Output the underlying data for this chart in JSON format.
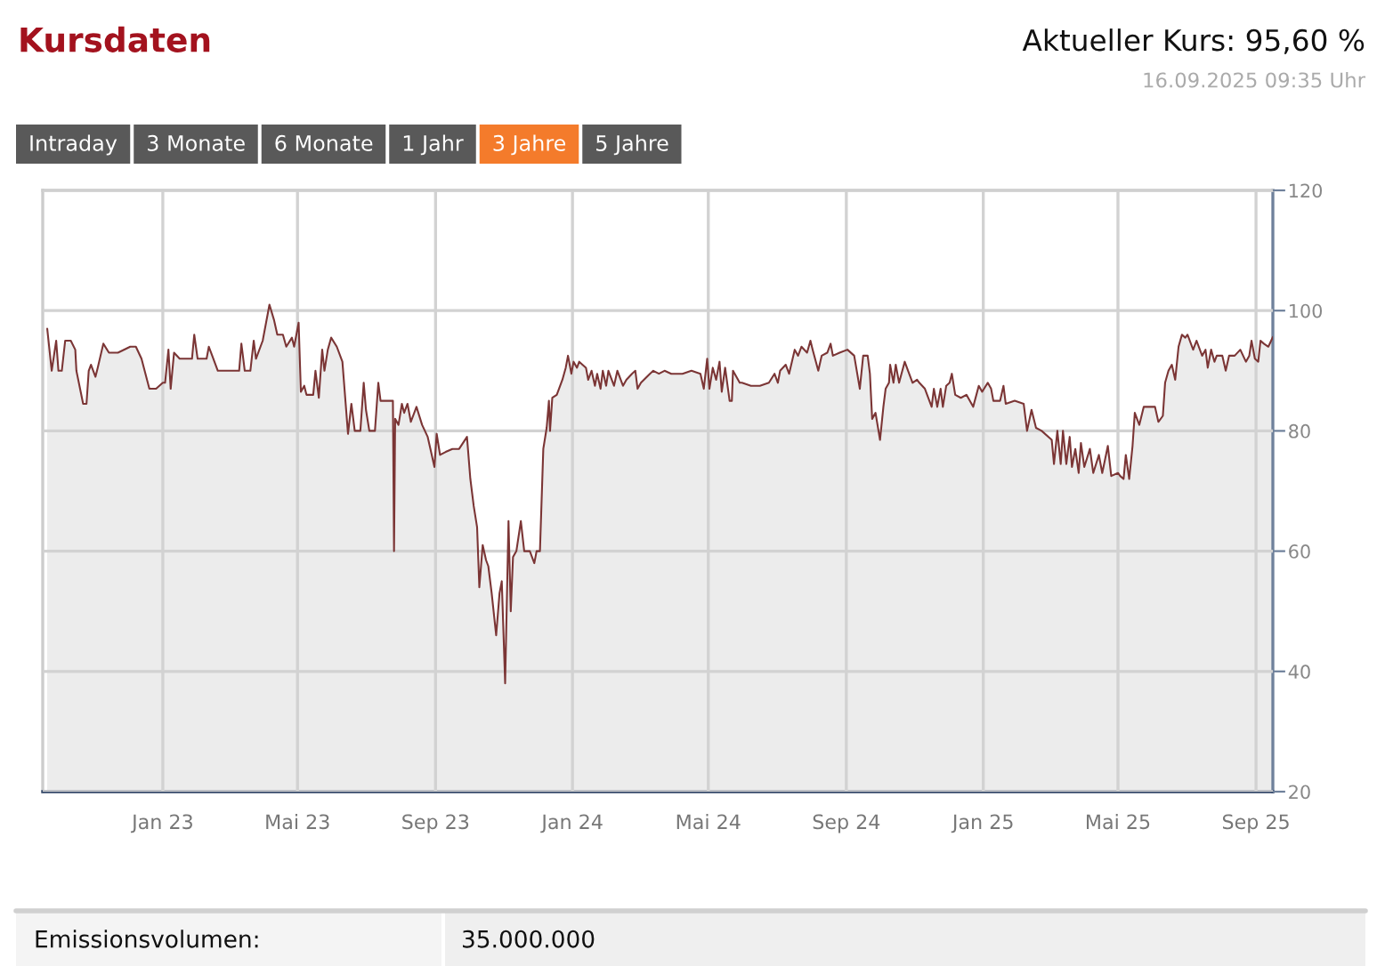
{
  "chart_data": {
    "type": "area",
    "title": "Kursdaten",
    "annotations": [
      "Aktueller Kurs: 95,60 %",
      "16.09.2025 09:35 Uhr",
      "Intraday",
      "3 Monate",
      "6 Monate",
      "1 Jahr",
      "3 Jahre",
      "5 Jahre",
      "Emissionsvolumen:",
      "35.000.000"
    ],
    "x": [
      "2022-09-20",
      "2022-09-24",
      "2022-09-28",
      "2022-09-30",
      "2022-10-03",
      "2022-10-06",
      "2022-10-11",
      "2022-10-15",
      "2022-10-16",
      "2022-10-22",
      "2022-10-25",
      "2022-10-27",
      "2022-10-29",
      "2022-11-02",
      "2022-11-04",
      "2022-11-09",
      "2022-11-14",
      "2022-11-22",
      "2022-12-03",
      "2022-12-08",
      "2022-12-13",
      "2022-12-20",
      "2022-12-26",
      "2023-01-01",
      "2023-01-03",
      "2023-01-06",
      "2023-01-08",
      "2023-01-11",
      "2023-01-16",
      "2023-01-27",
      "2023-01-29",
      "2023-02-01",
      "2023-02-09",
      "2023-02-11",
      "2023-02-14",
      "2023-02-19",
      "2023-03-10",
      "2023-03-12",
      "2023-03-15",
      "2023-03-20",
      "2023-03-23",
      "2023-03-25",
      "2023-03-31",
      "2023-04-06",
      "2023-04-10",
      "2023-04-13",
      "2023-04-18",
      "2023-04-21",
      "2023-04-26",
      "2023-04-28",
      "2023-05-02",
      "2023-05-04",
      "2023-05-07",
      "2023-05-09",
      "2023-05-15",
      "2023-05-17",
      "2023-05-20",
      "2023-05-23",
      "2023-05-25",
      "2023-05-28",
      "2023-05-31",
      "2023-06-05",
      "2023-06-10",
      "2023-06-15",
      "2023-06-18",
      "2023-06-21",
      "2023-06-26",
      "2023-06-29",
      "2023-07-01",
      "2023-07-04",
      "2023-07-09",
      "2023-07-12",
      "2023-07-14",
      "2023-07-22",
      "2023-07-25",
      "2023-07-26",
      "2023-07-27",
      "2023-07-30",
      "2023-08-02",
      "2023-08-04",
      "2023-08-07",
      "2023-08-10",
      "2023-08-15",
      "2023-08-20",
      "2023-08-25",
      "2023-08-28",
      "2023-08-31",
      "2023-09-02",
      "2023-09-05",
      "2023-09-10",
      "2023-09-16",
      "2023-09-22",
      "2023-09-29",
      "2023-10-02",
      "2023-10-05",
      "2023-10-08",
      "2023-10-10",
      "2023-10-13",
      "2023-10-16",
      "2023-10-18",
      "2023-10-21",
      "2023-10-25",
      "2023-10-28",
      "2023-10-30",
      "2023-11-02",
      "2023-11-05",
      "2023-11-07",
      "2023-11-09",
      "2023-11-12",
      "2023-11-16",
      "2023-11-19",
      "2023-11-24",
      "2023-11-28",
      "2023-11-30",
      "2023-12-03",
      "2023-12-06",
      "2023-12-09",
      "2023-12-11",
      "2023-12-12",
      "2023-12-14",
      "2023-12-18",
      "2023-12-23",
      "2023-12-26",
      "2023-12-28",
      "2023-12-31",
      "2024-01-02",
      "2024-01-05",
      "2024-01-07",
      "2024-01-13",
      "2024-01-15",
      "2024-01-18",
      "2024-01-21",
      "2024-01-23",
      "2024-01-26",
      "2024-01-28",
      "2024-01-31",
      "2024-02-02",
      "2024-02-07",
      "2024-02-10",
      "2024-02-15",
      "2024-02-18",
      "2024-02-23",
      "2024-02-26",
      "2024-02-28",
      "2024-03-02",
      "2024-03-10",
      "2024-03-13",
      "2024-03-18",
      "2024-03-23",
      "2024-03-29",
      "2024-04-08",
      "2024-04-16",
      "2024-04-24",
      "2024-04-27",
      "2024-04-30",
      "2024-05-02",
      "2024-05-05",
      "2024-05-08",
      "2024-05-11",
      "2024-05-13",
      "2024-05-16",
      "2024-05-20",
      "2024-05-22",
      "2024-05-23",
      "2024-05-29",
      "2024-05-31",
      "2024-06-08",
      "2024-06-16",
      "2024-06-24",
      "2024-06-29",
      "2024-07-02",
      "2024-07-04",
      "2024-07-09",
      "2024-07-12",
      "2024-07-17",
      "2024-07-20",
      "2024-07-23",
      "2024-07-28",
      "2024-07-31",
      "2024-08-02",
      "2024-08-07",
      "2024-08-10",
      "2024-08-15",
      "2024-08-18",
      "2024-08-20",
      "2024-08-26",
      "2024-09-02",
      "2024-09-08",
      "2024-09-13",
      "2024-09-16",
      "2024-09-20",
      "2024-09-22",
      "2024-09-24",
      "2024-09-27",
      "2024-10-01",
      "2024-10-04",
      "2024-10-06",
      "2024-10-09",
      "2024-10-10",
      "2024-10-13",
      "2024-10-15",
      "2024-10-18",
      "2024-10-23",
      "2024-10-26",
      "2024-10-30",
      "2024-11-03",
      "2024-11-05",
      "2024-11-10",
      "2024-11-16",
      "2024-11-18",
      "2024-11-21",
      "2024-11-24",
      "2024-11-26",
      "2024-11-29",
      "2024-12-02",
      "2024-12-04",
      "2024-12-07",
      "2024-12-12",
      "2024-12-17",
      "2024-12-23",
      "2024-12-28",
      "2024-12-31",
      "2025-01-05",
      "2025-01-08",
      "2025-01-10",
      "2025-01-16",
      "2025-01-19",
      "2025-01-21",
      "2025-01-29",
      "2025-02-06",
      "2025-02-09",
      "2025-02-13",
      "2025-02-17",
      "2025-02-22",
      "2025-03-03",
      "2025-03-05",
      "2025-03-08",
      "2025-03-11",
      "2025-03-13",
      "2025-03-16",
      "2025-03-19",
      "2025-03-21",
      "2025-03-24",
      "2025-03-27",
      "2025-03-29",
      "2025-04-01",
      "2025-04-06",
      "2025-04-09",
      "2025-04-14",
      "2025-04-17",
      "2025-04-22",
      "2025-04-25",
      "2025-05-01",
      "2025-05-03",
      "2025-05-06",
      "2025-05-08",
      "2025-05-11",
      "2025-05-14",
      "2025-05-16",
      "2025-05-20",
      "2025-05-24",
      "2025-05-29",
      "2025-06-03",
      "2025-06-06",
      "2025-06-10",
      "2025-06-12",
      "2025-06-15",
      "2025-06-18",
      "2025-06-21",
      "2025-06-24",
      "2025-06-27",
      "2025-06-30",
      "2025-07-02",
      "2025-07-07",
      "2025-07-10",
      "2025-07-15",
      "2025-07-18",
      "2025-07-20",
      "2025-07-23",
      "2025-07-26",
      "2025-07-28",
      "2025-08-02",
      "2025-08-05",
      "2025-08-08",
      "2025-08-13",
      "2025-08-18",
      "2025-08-23",
      "2025-08-26",
      "2025-08-28",
      "2025-08-31",
      "2025-09-03",
      "2025-09-05",
      "2025-09-08",
      "2025-09-12",
      "2025-09-16"
    ],
    "series": [
      {
        "color": "#ececec",
        "values": [
          97,
          90,
          95,
          90,
          90,
          95,
          95,
          93.5,
          90,
          84.5,
          84.5,
          90,
          91,
          89,
          90.5,
          94.5,
          93,
          93,
          94,
          94,
          92,
          87,
          87,
          88,
          88,
          93.5,
          87,
          93,
          92,
          92,
          96,
          92,
          92,
          94,
          92.5,
          90,
          90,
          94.5,
          90,
          90,
          95,
          92,
          95,
          101,
          98.5,
          96,
          96,
          94,
          95.5,
          94,
          98,
          86.5,
          87.5,
          86,
          86,
          90,
          85.5,
          93.5,
          90,
          93.5,
          95.5,
          94,
          91.5,
          79.5,
          84.5,
          80,
          80,
          88,
          83.5,
          80,
          80,
          88,
          85,
          85,
          85,
          60,
          82,
          81,
          84.5,
          83,
          84.5,
          81.5,
          84,
          81,
          79,
          76.5,
          74,
          79.5,
          76,
          76.5,
          77,
          77,
          79,
          72,
          67.5,
          64,
          54,
          61,
          58.5,
          57.5,
          53,
          46,
          53,
          55,
          38,
          65,
          50,
          59,
          60,
          65,
          60,
          60,
          58,
          60,
          60,
          77,
          80.5,
          85,
          80,
          85.5,
          86,
          88.5,
          90.5,
          92.5,
          89.5,
          91.5,
          90.5,
          91.5,
          90.5,
          88.5,
          90,
          87.5,
          89.5,
          87,
          90,
          87.5,
          90,
          87.5,
          90,
          87.5,
          88.5,
          89.5,
          90,
          87,
          88,
          89.5,
          90,
          89.5,
          90,
          89.5,
          89.5,
          90,
          89.5,
          87,
          92,
          87,
          90.5,
          88.5,
          91.5,
          86.5,
          90.5,
          85,
          85,
          90,
          88,
          88,
          87.5,
          87.5,
          88,
          89.5,
          88,
          90,
          91,
          89.5,
          93.5,
          92.5,
          94,
          93,
          95,
          93.5,
          90,
          92.5,
          93,
          94.5,
          92.5,
          93,
          93.5,
          92.5,
          87,
          92.5,
          92.5,
          89.5,
          82,
          83,
          78.5,
          84,
          87,
          88,
          91,
          88,
          91,
          88,
          91.5,
          90,
          88,
          88.5,
          88,
          87,
          84,
          87,
          84,
          87,
          84,
          87.5,
          88,
          89.5,
          86,
          85.5,
          86,
          84,
          87.5,
          86.5,
          88,
          87,
          85,
          85,
          87.5,
          84.5,
          85,
          84.5,
          80,
          83.5,
          80.5,
          80,
          78.5,
          74.5,
          80,
          74.5,
          80,
          74.5,
          79,
          74,
          77,
          73,
          78,
          74,
          77,
          73,
          76,
          73,
          77.5,
          72.5,
          73,
          72.5,
          72,
          76,
          72,
          77.5,
          83,
          81,
          84,
          84,
          84,
          81.5,
          82.5,
          88,
          90,
          91,
          88.5,
          94,
          96,
          95.5,
          96,
          93.5,
          95,
          92.5,
          93.5,
          90.5,
          93.5,
          91.5,
          92.5,
          92.5,
          90,
          92.5,
          92.5,
          93.5,
          91.5,
          92.5,
          95,
          92,
          91.5,
          95,
          94.5,
          94,
          95.6
        ]
      }
    ],
    "xlim": [
      "2022-09-16",
      "2025-09-16"
    ],
    "xticks": [
      {
        "value": "2023-01-01",
        "label": "Jan 23"
      },
      {
        "value": "2023-05-01",
        "label": "Mai 23"
      },
      {
        "value": "2023-09-01",
        "label": "Sep 23"
      },
      {
        "value": "2024-01-01",
        "label": "Jan 24"
      },
      {
        "value": "2024-05-01",
        "label": "Mai 24"
      },
      {
        "value": "2024-09-01",
        "label": "Sep 24"
      },
      {
        "value": "2025-01-01",
        "label": "Jan 25"
      },
      {
        "value": "2025-05-01",
        "label": "Mai 25"
      },
      {
        "value": "2025-09-01",
        "label": "Sep 25"
      }
    ],
    "ylim": [
      20,
      120
    ],
    "yticks": [
      20,
      40,
      60,
      80,
      100,
      120
    ],
    "grid": true
  }
}
